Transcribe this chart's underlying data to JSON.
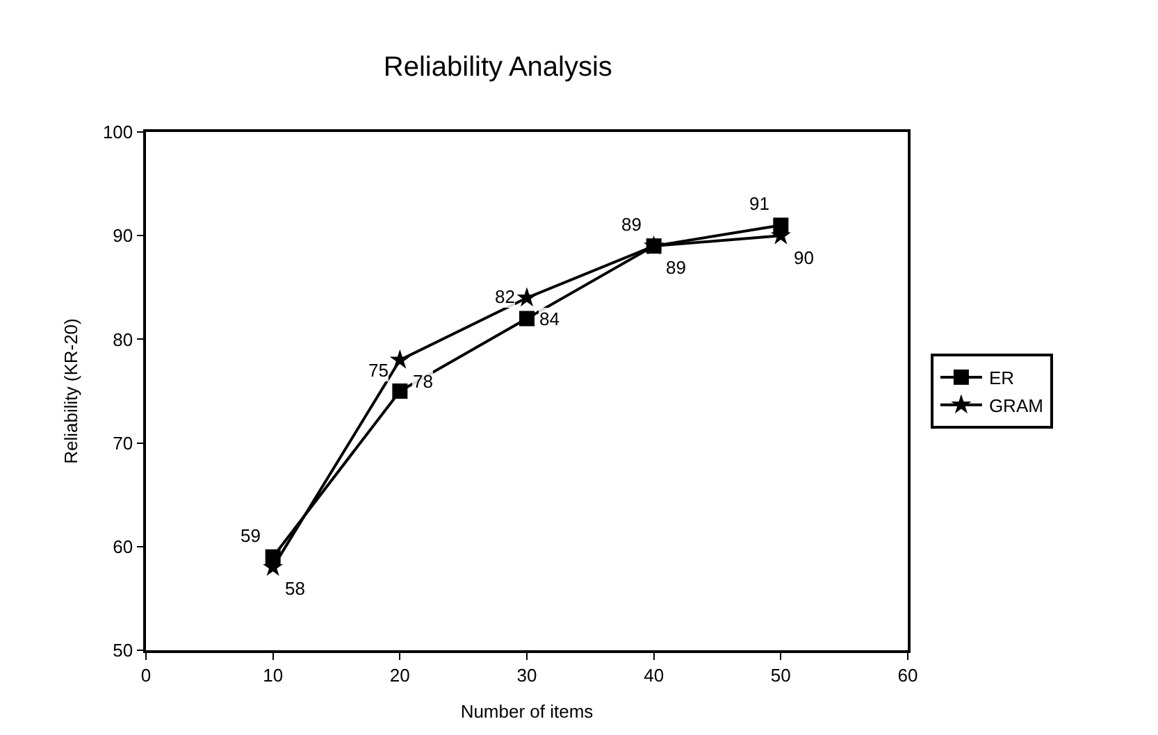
{
  "chart_data": {
    "type": "line",
    "title": "Reliability Analysis",
    "xlabel": "Number of items",
    "ylabel": "Reliability (KR-20)",
    "x": [
      10,
      20,
      30,
      40,
      50
    ],
    "series": [
      {
        "name": "ER",
        "color": "#000000",
        "marker": "square",
        "values": [
          59,
          75,
          82,
          89,
          91
        ]
      },
      {
        "name": "GRAM",
        "color": "#000000",
        "marker": "star",
        "values": [
          58,
          78,
          84,
          89,
          90
        ]
      }
    ],
    "xlim": [
      0,
      60
    ],
    "xticks": [
      0,
      10,
      20,
      30,
      40,
      50,
      60
    ],
    "ylim": [
      50,
      100
    ],
    "yticks": [
      50,
      60,
      70,
      80,
      90,
      100
    ],
    "legend": "right",
    "data_labels": true,
    "line_style": "solid"
  }
}
